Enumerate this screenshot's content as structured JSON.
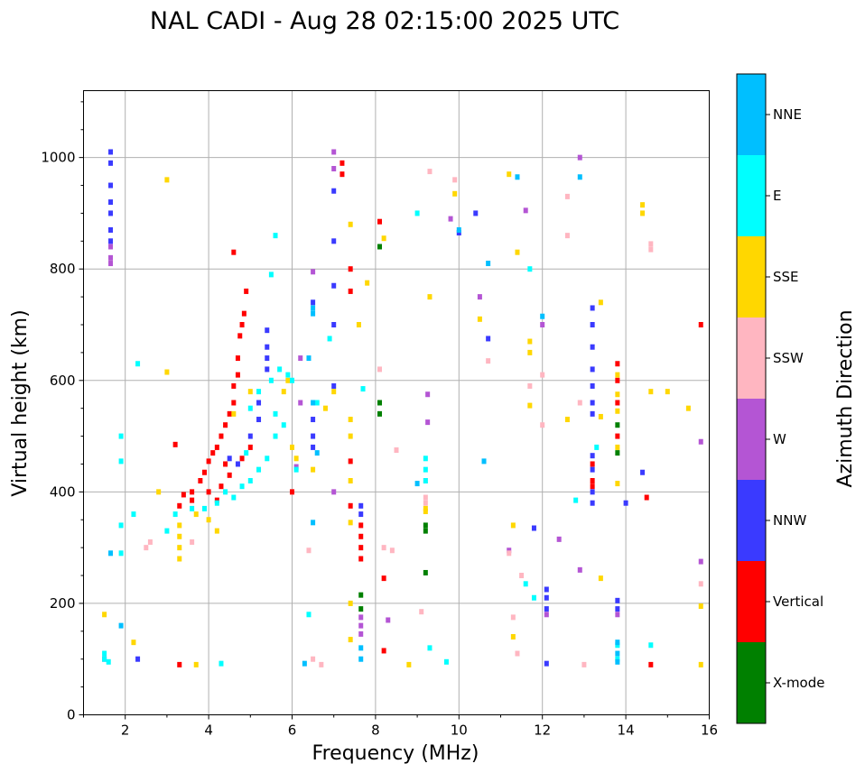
{
  "chart_data": {
    "type": "scatter",
    "title": "NAL CADI - Aug 28 02:15:00 2025 UTC",
    "xlabel": "Frequency (MHz)",
    "ylabel": "Virtual height (km)",
    "xlim": [
      1.0,
      16.0
    ],
    "ylim": [
      0,
      1120
    ],
    "xticks": [
      2,
      4,
      6,
      8,
      10,
      12,
      14,
      16
    ],
    "yticks": [
      0,
      200,
      400,
      600,
      800,
      1000
    ],
    "grid": true,
    "colorbar": {
      "title": "Azimuth Direction",
      "categories": [
        {
          "name": "X-mode",
          "color": "#008000"
        },
        {
          "name": "Vertical",
          "color": "#ff0000"
        },
        {
          "name": "NNW",
          "color": "#3a3aff"
        },
        {
          "name": "W",
          "color": "#b455d4"
        },
        {
          "name": "SSW",
          "color": "#ffb6c1"
        },
        {
          "name": "SSE",
          "color": "#ffd700"
        },
        {
          "name": "E",
          "color": "#00ffff"
        },
        {
          "name": "NNE",
          "color": "#00bfff"
        }
      ]
    },
    "series": [
      {
        "name": "X-mode",
        "points": [
          [
            7.65,
            215
          ],
          [
            7.65,
            190
          ],
          [
            8.1,
            560
          ],
          [
            8.1,
            540
          ],
          [
            8.1,
            840
          ],
          [
            9.2,
            340
          ],
          [
            9.2,
            330
          ],
          [
            9.2,
            255
          ],
          [
            13.8,
            520
          ],
          [
            13.8,
            470
          ]
        ]
      },
      {
        "name": "Vertical",
        "points": [
          [
            3.4,
            395
          ],
          [
            3.6,
            400
          ],
          [
            3.8,
            420
          ],
          [
            3.9,
            435
          ],
          [
            4.0,
            455
          ],
          [
            4.1,
            470
          ],
          [
            4.2,
            480
          ],
          [
            4.3,
            500
          ],
          [
            4.4,
            520
          ],
          [
            4.5,
            540
          ],
          [
            4.6,
            560
          ],
          [
            4.6,
            590
          ],
          [
            4.7,
            610
          ],
          [
            4.7,
            640
          ],
          [
            4.75,
            680
          ],
          [
            4.8,
            700
          ],
          [
            4.85,
            720
          ],
          [
            4.9,
            760
          ],
          [
            4.6,
            830
          ],
          [
            4.3,
            410
          ],
          [
            4.5,
            430
          ],
          [
            4.8,
            460
          ],
          [
            5.0,
            480
          ],
          [
            4.2,
            385
          ],
          [
            3.3,
            375
          ],
          [
            3.6,
            385
          ],
          [
            4.0,
            400
          ],
          [
            4.4,
            450
          ],
          [
            3.2,
            485
          ],
          [
            3.3,
            90
          ],
          [
            7.65,
            340
          ],
          [
            7.65,
            320
          ],
          [
            7.65,
            300
          ],
          [
            7.65,
            280
          ],
          [
            7.4,
            800
          ],
          [
            7.4,
            760
          ],
          [
            7.2,
            990
          ],
          [
            7.2,
            970
          ],
          [
            13.2,
            420
          ],
          [
            13.2,
            410
          ],
          [
            13.2,
            450
          ],
          [
            13.8,
            630
          ],
          [
            13.8,
            600
          ],
          [
            13.8,
            560
          ],
          [
            13.8,
            500
          ],
          [
            14.6,
            90
          ],
          [
            14.5,
            390
          ],
          [
            15.8,
            700
          ],
          [
            8.1,
            885
          ],
          [
            8.2,
            245
          ],
          [
            8.2,
            115
          ],
          [
            7.4,
            375
          ],
          [
            7.4,
            455
          ],
          [
            6.0,
            400
          ]
        ]
      },
      {
        "name": "NNW",
        "points": [
          [
            1.65,
            1010
          ],
          [
            1.65,
            990
          ],
          [
            1.65,
            950
          ],
          [
            1.65,
            920
          ],
          [
            1.65,
            900
          ],
          [
            1.65,
            870
          ],
          [
            1.65,
            850
          ],
          [
            5.4,
            690
          ],
          [
            5.4,
            660
          ],
          [
            5.4,
            640
          ],
          [
            5.4,
            620
          ],
          [
            5.2,
            560
          ],
          [
            5.2,
            530
          ],
          [
            5.0,
            500
          ],
          [
            4.5,
            460
          ],
          [
            4.7,
            450
          ],
          [
            6.5,
            530
          ],
          [
            6.5,
            500
          ],
          [
            6.5,
            480
          ],
          [
            7.0,
            940
          ],
          [
            7.0,
            850
          ],
          [
            7.0,
            770
          ],
          [
            7.0,
            700
          ],
          [
            7.0,
            590
          ],
          [
            13.2,
            730
          ],
          [
            13.2,
            700
          ],
          [
            13.2,
            660
          ],
          [
            13.2,
            620
          ],
          [
            13.2,
            590
          ],
          [
            13.2,
            560
          ],
          [
            13.2,
            540
          ],
          [
            13.2,
            465
          ],
          [
            13.2,
            440
          ],
          [
            13.2,
            400
          ],
          [
            13.2,
            380
          ],
          [
            12.1,
            225
          ],
          [
            12.1,
            210
          ],
          [
            12.1,
            190
          ],
          [
            13.8,
            205
          ],
          [
            13.8,
            190
          ],
          [
            14.0,
            380
          ],
          [
            14.4,
            435
          ],
          [
            10.4,
            900
          ],
          [
            10.0,
            865
          ],
          [
            10.7,
            675
          ],
          [
            11.8,
            335
          ],
          [
            12.1,
            92
          ],
          [
            2.3,
            100
          ],
          [
            6.5,
            740
          ],
          [
            7.65,
            375
          ],
          [
            7.65,
            360
          ]
        ]
      },
      {
        "name": "W",
        "points": [
          [
            1.65,
            840
          ],
          [
            1.65,
            820
          ],
          [
            1.65,
            810
          ],
          [
            6.2,
            640
          ],
          [
            6.2,
            560
          ],
          [
            6.5,
            795
          ],
          [
            7.0,
            1010
          ],
          [
            7.0,
            980
          ],
          [
            7.0,
            400
          ],
          [
            7.65,
            160
          ],
          [
            7.65,
            175
          ],
          [
            7.65,
            145
          ],
          [
            8.3,
            170
          ],
          [
            9.25,
            575
          ],
          [
            9.25,
            525
          ],
          [
            10.5,
            750
          ],
          [
            11.2,
            295
          ],
          [
            11.6,
            905
          ],
          [
            12.0,
            700
          ],
          [
            12.1,
            180
          ],
          [
            12.4,
            315
          ],
          [
            12.9,
            1000
          ],
          [
            12.9,
            260
          ],
          [
            15.8,
            490
          ],
          [
            15.8,
            275
          ],
          [
            13.8,
            180
          ],
          [
            9.8,
            890
          ],
          [
            6.1,
            445
          ],
          [
            1.5,
            100
          ]
        ]
      },
      {
        "name": "SSW",
        "points": [
          [
            9.2,
            420
          ],
          [
            9.2,
            390
          ],
          [
            9.2,
            380
          ],
          [
            11.2,
            290
          ],
          [
            11.5,
            250
          ],
          [
            12.6,
            930
          ],
          [
            12.6,
            860
          ],
          [
            12.9,
            560
          ],
          [
            14.6,
            845
          ],
          [
            14.6,
            835
          ],
          [
            15.8,
            235
          ],
          [
            8.2,
            300
          ],
          [
            8.4,
            295
          ],
          [
            6.4,
            295
          ],
          [
            6.5,
            100
          ],
          [
            6.7,
            90
          ],
          [
            9.3,
            975
          ],
          [
            9.9,
            960
          ],
          [
            11.3,
            175
          ],
          [
            12.0,
            520
          ],
          [
            11.7,
            590
          ],
          [
            10.7,
            635
          ],
          [
            12.0,
            610
          ],
          [
            2.6,
            310
          ],
          [
            2.5,
            300
          ],
          [
            3.6,
            310
          ],
          [
            13.0,
            90
          ],
          [
            8.1,
            620
          ],
          [
            8.5,
            475
          ],
          [
            11.4,
            110
          ],
          [
            9.1,
            185
          ]
        ]
      },
      {
        "name": "SSE",
        "points": [
          [
            3.3,
            280
          ],
          [
            3.3,
            300
          ],
          [
            3.3,
            320
          ],
          [
            3.3,
            340
          ],
          [
            3.7,
            360
          ],
          [
            4.0,
            350
          ],
          [
            4.2,
            330
          ],
          [
            4.6,
            540
          ],
          [
            5.0,
            580
          ],
          [
            5.8,
            580
          ],
          [
            5.9,
            600
          ],
          [
            6.0,
            480
          ],
          [
            6.1,
            460
          ],
          [
            6.5,
            440
          ],
          [
            7.0,
            580
          ],
          [
            7.4,
            880
          ],
          [
            7.4,
            530
          ],
          [
            7.4,
            500
          ],
          [
            7.4,
            420
          ],
          [
            7.4,
            345
          ],
          [
            7.4,
            200
          ],
          [
            7.4,
            135
          ],
          [
            7.6,
            700
          ],
          [
            7.8,
            775
          ],
          [
            8.2,
            855
          ],
          [
            8.8,
            90
          ],
          [
            9.2,
            370
          ],
          [
            9.2,
            365
          ],
          [
            9.3,
            750
          ],
          [
            9.9,
            935
          ],
          [
            10.5,
            710
          ],
          [
            11.2,
            970
          ],
          [
            11.4,
            830
          ],
          [
            11.3,
            340
          ],
          [
            11.7,
            670
          ],
          [
            11.7,
            650
          ],
          [
            11.7,
            555
          ],
          [
            12.6,
            530
          ],
          [
            13.4,
            740
          ],
          [
            13.4,
            535
          ],
          [
            13.4,
            245
          ],
          [
            13.8,
            610
          ],
          [
            13.8,
            575
          ],
          [
            13.8,
            545
          ],
          [
            13.8,
            480
          ],
          [
            13.8,
            415
          ],
          [
            14.4,
            915
          ],
          [
            14.4,
            900
          ],
          [
            14.6,
            580
          ],
          [
            15.0,
            580
          ],
          [
            15.5,
            550
          ],
          [
            15.8,
            195
          ],
          [
            15.8,
            90
          ],
          [
            3.0,
            960
          ],
          [
            3.0,
            615
          ],
          [
            2.8,
            400
          ],
          [
            3.7,
            90
          ],
          [
            2.2,
            130
          ],
          [
            1.5,
            180
          ],
          [
            6.8,
            550
          ],
          [
            11.3,
            140
          ]
        ]
      },
      {
        "name": "E",
        "points": [
          [
            1.5,
            110
          ],
          [
            1.5,
            100
          ],
          [
            1.6,
            95
          ],
          [
            1.9,
            290
          ],
          [
            1.9,
            340
          ],
          [
            1.9,
            455
          ],
          [
            1.9,
            500
          ],
          [
            2.2,
            360
          ],
          [
            2.3,
            630
          ],
          [
            3.0,
            330
          ],
          [
            3.2,
            360
          ],
          [
            3.6,
            370
          ],
          [
            3.9,
            370
          ],
          [
            4.2,
            380
          ],
          [
            4.4,
            400
          ],
          [
            4.6,
            390
          ],
          [
            4.8,
            410
          ],
          [
            5.0,
            420
          ],
          [
            5.2,
            440
          ],
          [
            5.4,
            460
          ],
          [
            5.6,
            500
          ],
          [
            5.0,
            550
          ],
          [
            5.2,
            580
          ],
          [
            5.5,
            600
          ],
          [
            5.7,
            620
          ],
          [
            5.9,
            610
          ],
          [
            6.0,
            600
          ],
          [
            5.8,
            520
          ],
          [
            5.6,
            540
          ],
          [
            4.9,
            470
          ],
          [
            5.5,
            790
          ],
          [
            5.6,
            860
          ],
          [
            6.4,
            180
          ],
          [
            6.6,
            560
          ],
          [
            9.2,
            460
          ],
          [
            9.2,
            440
          ],
          [
            9.2,
            420
          ],
          [
            9.0,
            900
          ],
          [
            9.3,
            120
          ],
          [
            9.7,
            95
          ],
          [
            12.8,
            385
          ],
          [
            13.3,
            480
          ],
          [
            13.8,
            125
          ],
          [
            13.8,
            100
          ],
          [
            14.6,
            125
          ],
          [
            11.6,
            235
          ],
          [
            11.8,
            210
          ],
          [
            11.7,
            800
          ],
          [
            7.7,
            585
          ],
          [
            4.3,
            92
          ],
          [
            6.9,
            675
          ],
          [
            6.1,
            440
          ]
        ]
      },
      {
        "name": "NNE",
        "points": [
          [
            6.5,
            730
          ],
          [
            6.5,
            720
          ],
          [
            6.4,
            640
          ],
          [
            6.5,
            560
          ],
          [
            6.6,
            470
          ],
          [
            9.0,
            415
          ],
          [
            10.6,
            455
          ],
          [
            10.7,
            810
          ],
          [
            10.0,
            870
          ],
          [
            11.4,
            965
          ],
          [
            12.9,
            965
          ],
          [
            13.8,
            130
          ],
          [
            13.8,
            110
          ],
          [
            13.8,
            95
          ],
          [
            6.3,
            92
          ],
          [
            7.65,
            100
          ],
          [
            7.65,
            120
          ],
          [
            1.65,
            290
          ],
          [
            1.9,
            160
          ],
          [
            6.5,
            345
          ],
          [
            12.0,
            715
          ]
        ]
      }
    ]
  }
}
